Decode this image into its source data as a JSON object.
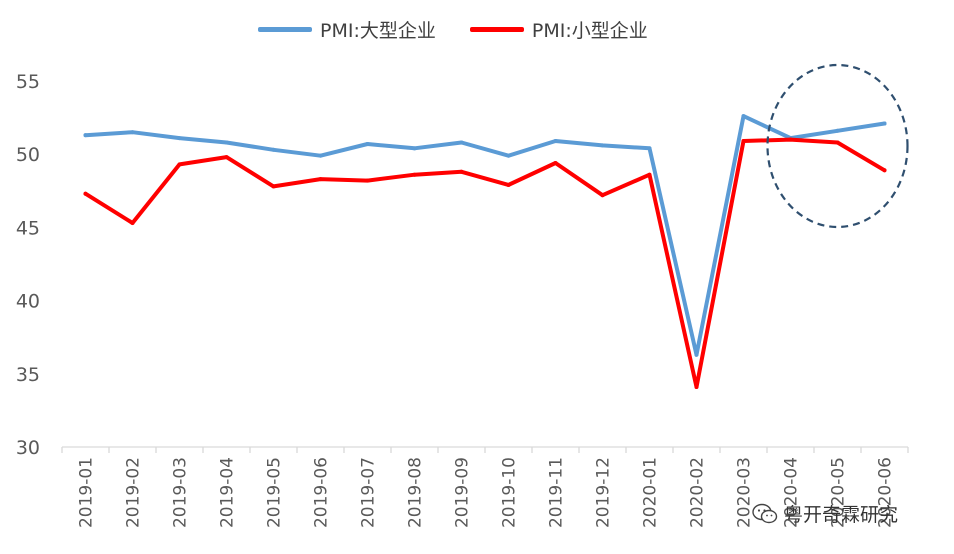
{
  "chart_data": {
    "type": "line",
    "categories": [
      "2019-01",
      "2019-02",
      "2019-03",
      "2019-04",
      "2019-05",
      "2019-06",
      "2019-07",
      "2019-08",
      "2019-09",
      "2019-10",
      "2019-11",
      "2019-12",
      "2020-01",
      "2020-02",
      "2020-03",
      "2020-04",
      "2020-05",
      "2020-06"
    ],
    "series": [
      {
        "name": "PMI:大型企业",
        "color": "#5b9bd5",
        "values": [
          51.3,
          51.5,
          51.1,
          50.8,
          50.3,
          49.9,
          50.7,
          50.4,
          50.8,
          49.9,
          50.9,
          50.6,
          50.4,
          36.3,
          52.6,
          51.1,
          51.6,
          52.1
        ]
      },
      {
        "name": "PMI:小型企业",
        "color": "#ff0000",
        "values": [
          47.3,
          45.3,
          49.3,
          49.8,
          47.8,
          48.3,
          48.2,
          48.6,
          48.8,
          47.9,
          49.4,
          47.2,
          48.6,
          34.1,
          50.9,
          51.0,
          50.8,
          48.9
        ]
      }
    ],
    "ylim": [
      30,
      55
    ],
    "yticks": [
      "30",
      "35",
      "40",
      "45",
      "50",
      "55"
    ],
    "grid": false,
    "legend_position": "top",
    "annotation": {
      "shape": "dashed-ellipse",
      "color": "#2f4f6f",
      "highlights": [
        "2020-04",
        "2020-05",
        "2020-06"
      ]
    }
  },
  "watermark": {
    "text": "粤开奇霖研究",
    "icon": "wechat-icon"
  }
}
